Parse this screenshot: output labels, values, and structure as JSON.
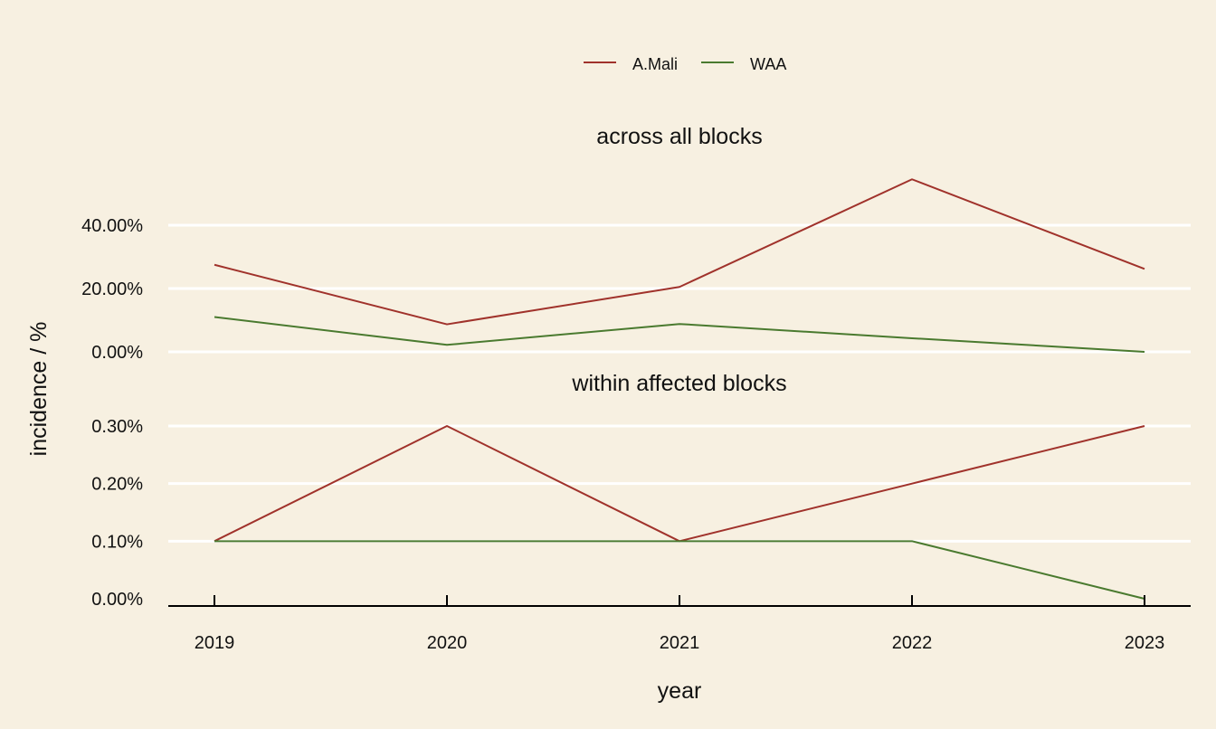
{
  "chart_data": {
    "type": "line",
    "ylabel": "incidence / %",
    "xlabel": "year",
    "legend_position": "top",
    "grid": true,
    "series_colors": {
      "A.Mali": "#a0322b",
      "WAA": "#4a7a2f"
    },
    "x": [
      "2019",
      "2020",
      "2021",
      "2022",
      "2023"
    ],
    "legend": [
      "A.Mali",
      "WAA"
    ],
    "panels": [
      {
        "title": "across all blocks",
        "yticks": [
          "0.00%",
          "20.00%",
          "40.00%"
        ],
        "ylim": [
          0,
          55
        ],
        "series": [
          {
            "name": "A.Mali",
            "values": [
              27.5,
              8.7,
              20.5,
              54.5,
              26.2
            ]
          },
          {
            "name": "WAA",
            "values": [
              11.0,
              2.2,
              8.8,
              4.3,
              0.0
            ]
          }
        ]
      },
      {
        "title": "within affected blocks",
        "yticks": [
          "0.00%",
          "0.10%",
          "0.20%",
          "0.30%"
        ],
        "ylim": [
          0,
          0.3
        ],
        "series": [
          {
            "name": "A.Mali",
            "values": [
              0.1,
              0.3,
              0.1,
              0.2,
              0.3
            ]
          },
          {
            "name": "WAA",
            "values": [
              0.1,
              0.1,
              0.1,
              0.1,
              0.0
            ]
          }
        ]
      }
    ]
  }
}
